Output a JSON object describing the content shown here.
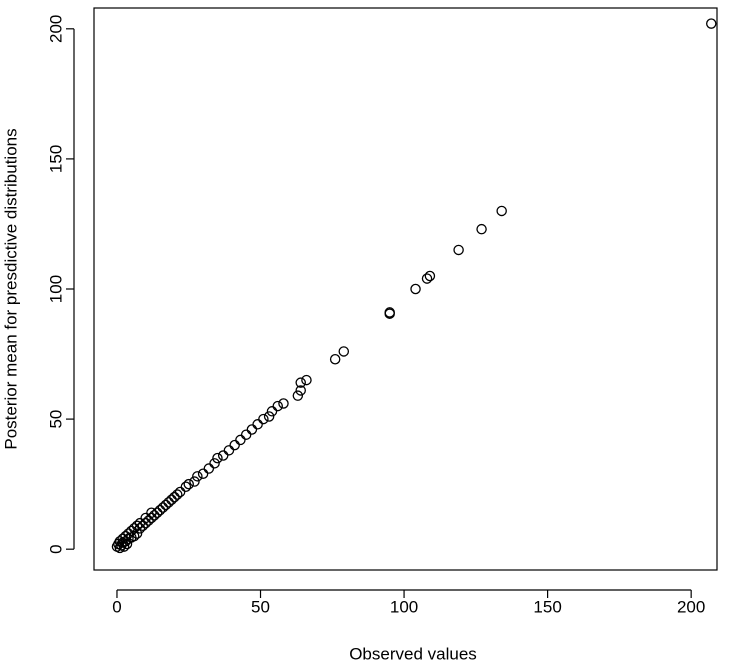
{
  "chart_data": {
    "type": "scatter",
    "x_label": "Observed values",
    "y_label": "Posterior mean for presdictive distributions",
    "color": "#000000",
    "x": [
      0,
      0.5,
      1,
      1,
      1.5,
      2,
      2,
      2.5,
      3,
      3,
      3.5,
      4,
      4,
      5,
      5,
      6,
      6,
      7,
      7,
      8,
      8,
      9,
      10,
      10,
      11,
      12,
      12,
      13,
      14,
      15,
      16,
      17,
      18,
      19,
      20,
      21,
      22,
      24,
      25,
      27,
      28,
      30,
      32,
      34,
      35,
      37,
      39,
      41,
      43,
      45,
      47,
      49,
      51,
      53,
      54,
      56,
      58,
      63,
      64,
      64,
      66,
      76,
      79,
      95,
      95,
      104,
      108,
      109,
      119,
      127,
      134,
      207
    ],
    "values": [
      1,
      2,
      0.5,
      3,
      1.5,
      2.5,
      4,
      1,
      3,
      5,
      2,
      4,
      6,
      4.5,
      7,
      5,
      8,
      6,
      9,
      8,
      10,
      9,
      10,
      12,
      11,
      12,
      14,
      13,
      14,
      15,
      16,
      17,
      18,
      19,
      20,
      21,
      22,
      24,
      25,
      26,
      28,
      29,
      31,
      33,
      35,
      36,
      38,
      40,
      42,
      44,
      46,
      48,
      50,
      51,
      53,
      55,
      56,
      59,
      61,
      64,
      65,
      73,
      76,
      90.5,
      91,
      100,
      104,
      105,
      115,
      123,
      130,
      202
    ],
    "xlim": [
      -8,
      209
    ],
    "ylim": [
      -8,
      208
    ],
    "xticks": [
      0,
      50,
      100,
      150,
      200
    ],
    "yticks": [
      0,
      50,
      100,
      150,
      200
    ]
  }
}
